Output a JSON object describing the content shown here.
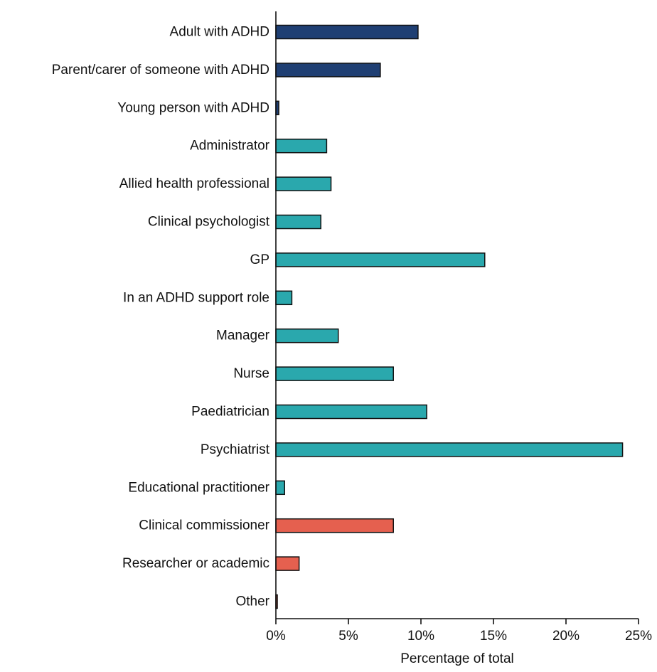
{
  "chart_data": {
    "type": "bar",
    "orientation": "horizontal",
    "title": "",
    "xlabel": "Percentage of total",
    "ylabel": "",
    "xlim": [
      0,
      25
    ],
    "x_ticks": [
      0,
      5,
      10,
      15,
      20,
      25
    ],
    "x_tick_labels": [
      "0%",
      "5%",
      "10%",
      "15%",
      "20%",
      "25%"
    ],
    "grid": false,
    "legend": null,
    "colors": {
      "group_1": "#1f3f73",
      "group_2": "#2aa8ad",
      "group_3": "#e5604f"
    },
    "categories": [
      "Adult with ADHD",
      "Parent/carer of someone with ADHD",
      "Young person with ADHD",
      "Administrator",
      "Allied health professional",
      "Clinical psychologist",
      "GP",
      "In an ADHD support role",
      "Manager",
      "Nurse",
      "Paediatrician",
      "Psychiatrist",
      "Educational practitioner",
      "Clinical commissioner",
      "Researcher or academic",
      "Other"
    ],
    "values": [
      9.8,
      7.2,
      0.2,
      3.5,
      3.8,
      3.1,
      14.4,
      1.1,
      4.3,
      8.1,
      10.4,
      23.9,
      0.6,
      8.1,
      1.6,
      0.1
    ],
    "color_groups": [
      "group_1",
      "group_1",
      "group_1",
      "group_2",
      "group_2",
      "group_2",
      "group_2",
      "group_2",
      "group_2",
      "group_2",
      "group_2",
      "group_2",
      "group_2",
      "group_3",
      "group_3",
      "group_3"
    ]
  }
}
